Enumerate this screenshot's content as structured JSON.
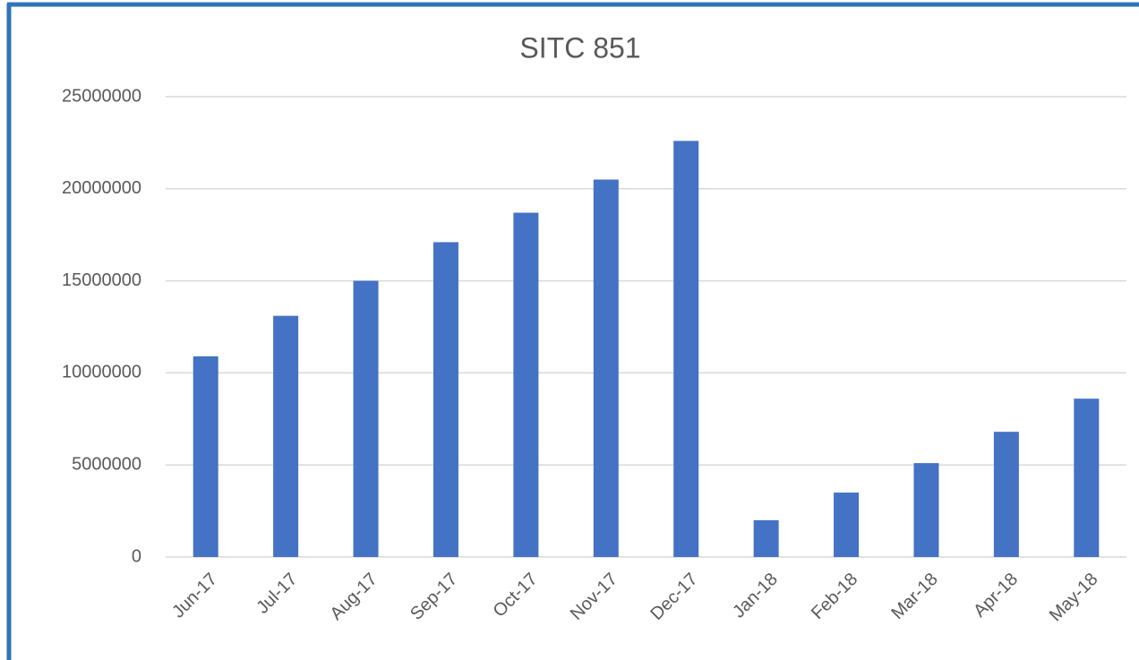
{
  "chart_data": {
    "type": "bar",
    "title": "SITC 851",
    "categories": [
      "Jun-17",
      "Jul-17",
      "Aug-17",
      "Sep-17",
      "Oct-17",
      "Nov-17",
      "Dec-17",
      "Jan-18",
      "Feb-18",
      "Mar-18",
      "Apr-18",
      "May-18"
    ],
    "values": [
      10900000,
      13100000,
      15000000,
      17100000,
      18700000,
      20500000,
      22600000,
      2000000,
      3500000,
      5100000,
      6800000,
      8600000
    ],
    "color": "#4472c4",
    "ylim": [
      0,
      25000000
    ],
    "yticks": [
      0,
      5000000,
      10000000,
      15000000,
      20000000,
      25000000
    ],
    "grid": true
  }
}
